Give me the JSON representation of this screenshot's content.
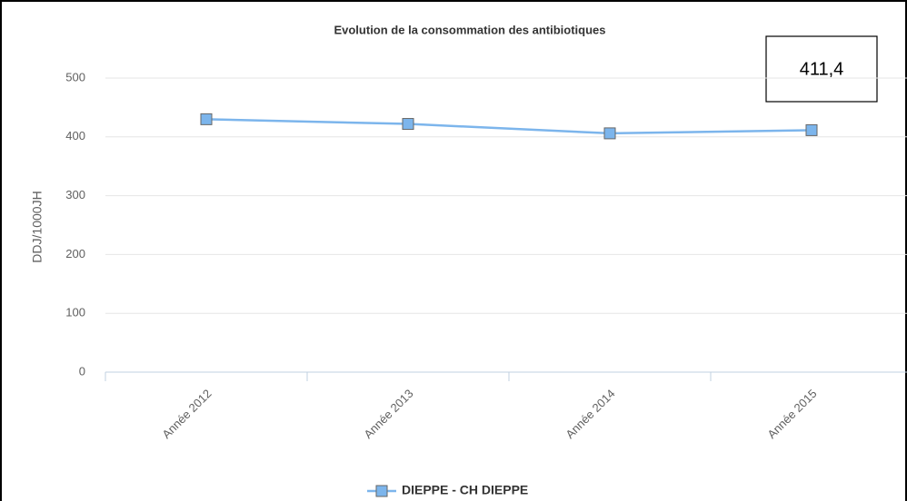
{
  "chart_data": {
    "type": "line",
    "title": "Evolution de la consommation des antibiotiques",
    "y_label": "DDJ/1000JH",
    "annotation": "411,4",
    "categories": [
      "Année 2012",
      "Année 2013",
      "Année 2014",
      "Année 2015"
    ],
    "series": [
      {
        "name": "DIEPPE - CH DIEPPE",
        "color": "#7cb5ec",
        "values": [
          430,
          422,
          406,
          411.4
        ]
      }
    ],
    "ylim": [
      0,
      500
    ],
    "yticks": [
      0,
      100,
      200,
      300,
      400,
      500
    ],
    "grid": true,
    "legend": "bottom"
  }
}
